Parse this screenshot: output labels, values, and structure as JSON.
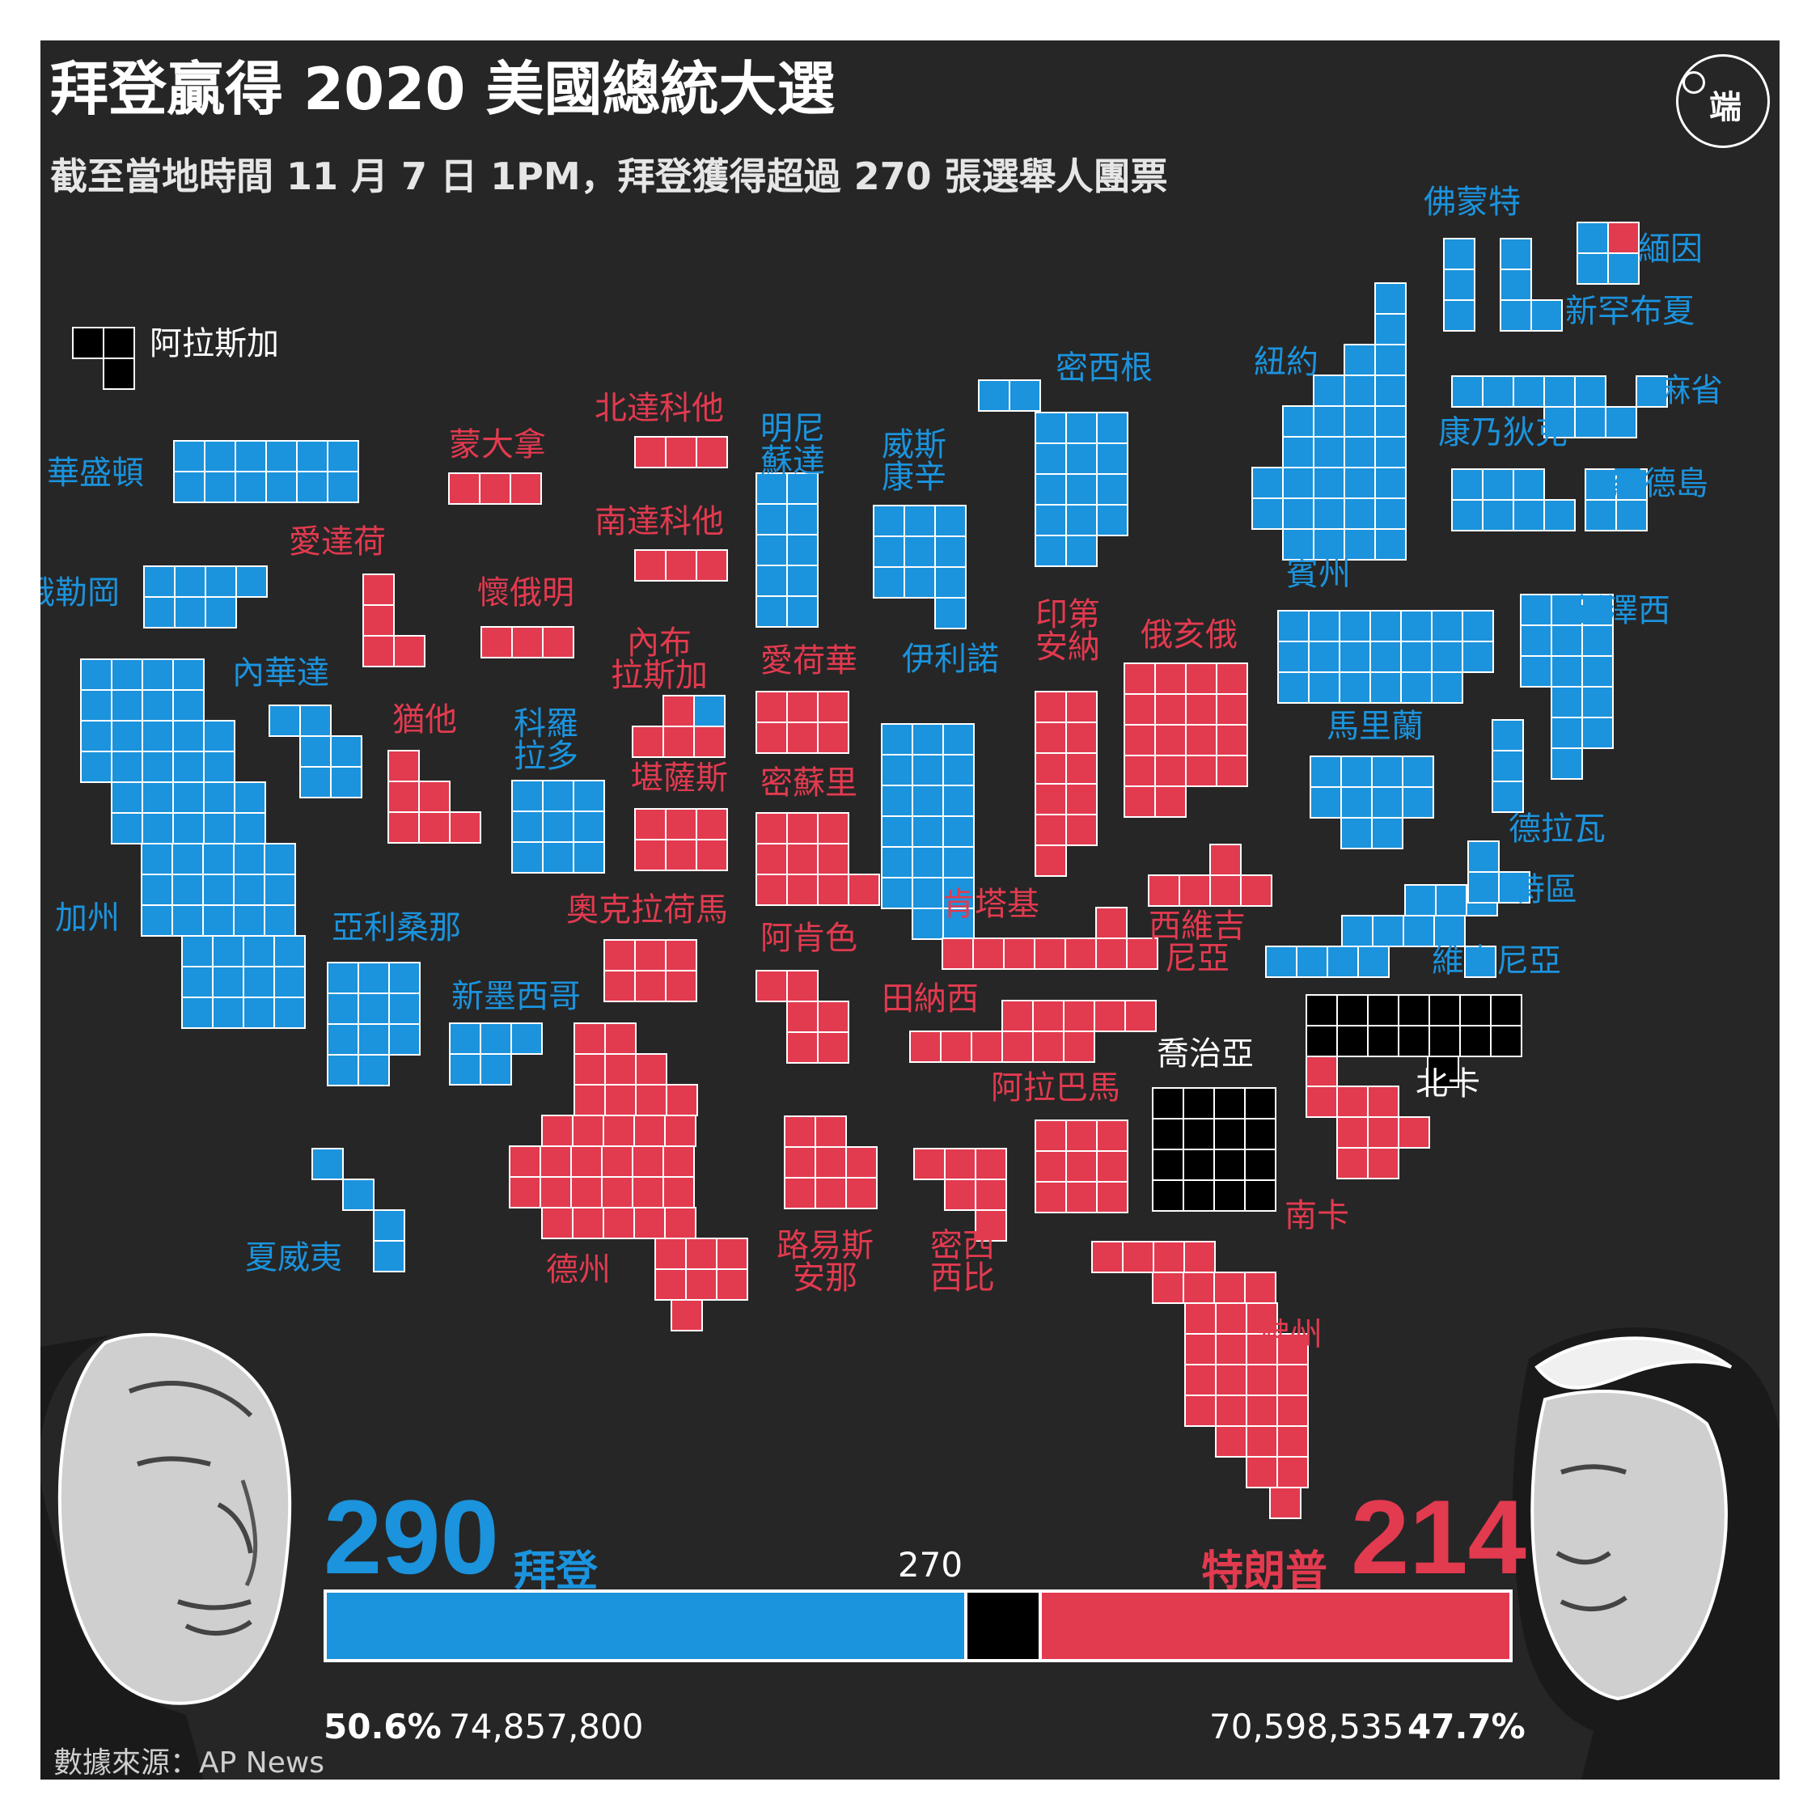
{
  "header": {
    "title": "拜登贏得 2020 美國總統大選",
    "subtitle": "截至當地時間 11 月 7 日 1PM，拜登獲得超過 270 張選舉人團票",
    "logo_glyph": "端"
  },
  "colors": {
    "background": "#262626",
    "biden": "#1b93dd",
    "trump": "#e23a4f",
    "undecided": "#000000",
    "grid_line": "#ffffff"
  },
  "states": [
    {
      "name": "阿拉斯加",
      "winner": "undecided",
      "votes": 3
    },
    {
      "name": "華盛頓",
      "winner": "biden",
      "votes": 12
    },
    {
      "name": "俄勒岡",
      "winner": "biden",
      "votes": 7
    },
    {
      "name": "加州",
      "winner": "biden",
      "votes": 55
    },
    {
      "name": "內華達",
      "winner": "biden",
      "votes": 6
    },
    {
      "name": "夏威夷",
      "winner": "biden",
      "votes": 4
    },
    {
      "name": "愛達荷",
      "winner": "trump",
      "votes": 4
    },
    {
      "name": "蒙大拿",
      "winner": "trump",
      "votes": 3
    },
    {
      "name": "懷俄明",
      "winner": "trump",
      "votes": 3
    },
    {
      "name": "猶他",
      "winner": "trump",
      "votes": 6
    },
    {
      "name": "亞利桑那",
      "winner": "biden",
      "votes": 11
    },
    {
      "name": "科羅拉多",
      "winner": "biden",
      "votes": 9
    },
    {
      "name": "新墨西哥",
      "winner": "biden",
      "votes": 5
    },
    {
      "name": "北達科他",
      "winner": "trump",
      "votes": 3
    },
    {
      "name": "南達科他",
      "winner": "trump",
      "votes": 3
    },
    {
      "name": "內布拉斯加",
      "winner": "split",
      "votes": 5
    },
    {
      "name": "堪薩斯",
      "winner": "trump",
      "votes": 6
    },
    {
      "name": "奧克拉荷馬",
      "winner": "trump",
      "votes": 7
    },
    {
      "name": "德州",
      "winner": "trump",
      "votes": 38
    },
    {
      "name": "明尼蘇達",
      "winner": "biden",
      "votes": 10
    },
    {
      "name": "愛荷華",
      "winner": "trump",
      "votes": 6
    },
    {
      "name": "密蘇里",
      "winner": "trump",
      "votes": 10
    },
    {
      "name": "阿肯色",
      "winner": "trump",
      "votes": 6
    },
    {
      "name": "路易斯安那",
      "winner": "trump",
      "votes": 8
    },
    {
      "name": "威斯康辛",
      "winner": "biden",
      "votes": 10
    },
    {
      "name": "伊利諾",
      "winner": "biden",
      "votes": 20
    },
    {
      "name": "密西根",
      "winner": "biden",
      "votes": 16
    },
    {
      "name": "印第安納",
      "winner": "trump",
      "votes": 11
    },
    {
      "name": "肯塔基",
      "winner": "trump",
      "votes": 8
    },
    {
      "name": "田納西",
      "winner": "trump",
      "votes": 11
    },
    {
      "name": "密西西比",
      "winner": "trump",
      "votes": 6
    },
    {
      "name": "阿拉巴馬",
      "winner": "trump",
      "votes": 9
    },
    {
      "name": "俄亥俄",
      "winner": "trump",
      "votes": 18
    },
    {
      "name": "西維吉尼亞",
      "winner": "trump",
      "votes": 5
    },
    {
      "name": "喬治亞",
      "winner": "undecided",
      "votes": 16
    },
    {
      "name": "佛州",
      "winner": "trump",
      "votes": 29
    },
    {
      "name": "南卡",
      "winner": "trump",
      "votes": 9
    },
    {
      "name": "北卡",
      "winner": "undecided",
      "votes": 15
    },
    {
      "name": "維吉尼亞",
      "winner": "biden",
      "votes": 13
    },
    {
      "name": "特區",
      "winner": "biden",
      "votes": 3
    },
    {
      "name": "馬里蘭",
      "winner": "biden",
      "votes": 10
    },
    {
      "name": "德拉瓦",
      "winner": "biden",
      "votes": 3
    },
    {
      "name": "賓州",
      "winner": "biden",
      "votes": 20
    },
    {
      "name": "新澤西",
      "winner": "biden",
      "votes": 14
    },
    {
      "name": "紐約",
      "winner": "biden",
      "votes": 29
    },
    {
      "name": "康乃狄克",
      "winner": "biden",
      "votes": 7
    },
    {
      "name": "羅德島",
      "winner": "biden",
      "votes": 4
    },
    {
      "name": "麻省",
      "winner": "biden",
      "votes": 11
    },
    {
      "name": "佛蒙特",
      "winner": "biden",
      "votes": 3
    },
    {
      "name": "新罕布夏",
      "winner": "biden",
      "votes": 4
    },
    {
      "name": "緬因",
      "winner": "split",
      "votes": 4
    }
  ],
  "results": {
    "biden": {
      "name": "拜登",
      "electoral_votes": "290",
      "popular_pct": "50.6%",
      "popular_votes": "74,857,800"
    },
    "trump": {
      "name": "特朗普",
      "electoral_votes": "214",
      "popular_pct": "47.7%",
      "popular_votes": "70,598,535"
    },
    "threshold": "270",
    "total_electoral_votes": 538
  },
  "footer": {
    "source": "數據來源：AP News"
  }
}
